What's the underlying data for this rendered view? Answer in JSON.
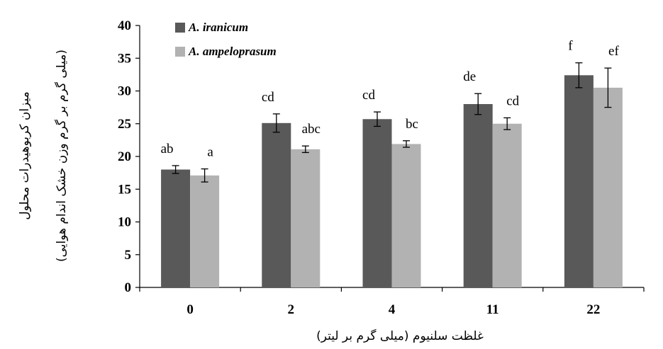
{
  "chart_data": {
    "type": "bar",
    "categories": [
      "0",
      "2",
      "4",
      "11",
      "22"
    ],
    "series": [
      {
        "name": "A. iranicum",
        "color": "#595959",
        "values": [
          18.0,
          25.1,
          25.7,
          28.0,
          32.4
        ],
        "errors": [
          0.6,
          1.4,
          1.1,
          1.6,
          1.9
        ],
        "letters": [
          "ab",
          "cd",
          "cd",
          "de",
          "f"
        ]
      },
      {
        "name": "A. ampeloprasum",
        "color": "#b2b2b2",
        "values": [
          17.1,
          21.1,
          21.9,
          25.0,
          30.5
        ],
        "errors": [
          1.0,
          0.5,
          0.5,
          0.9,
          3.0
        ],
        "letters": [
          "a",
          "abc",
          "bc",
          "cd",
          "ef"
        ]
      }
    ],
    "xlabel": "غلظت سلنیوم (میلی گرم بر لیتر)",
    "ylabel": "میزان کربوهیدرات محلول",
    "ylabel_line2": "(میلی گرم بر گرم وزن خشک اندام هوایی)",
    "ylim": [
      0,
      40
    ],
    "yticks": [
      0,
      5,
      10,
      15,
      20,
      25,
      30,
      35,
      40
    ],
    "grid": false,
    "legend_position": "top-left"
  }
}
